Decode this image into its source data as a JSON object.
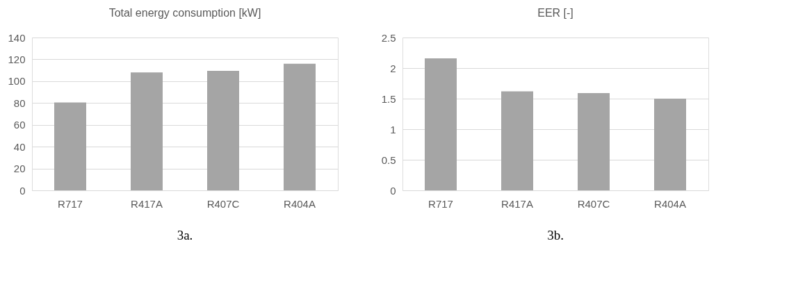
{
  "chart_data": [
    {
      "type": "bar",
      "title": "Total energy consumption [kW]",
      "categories": [
        "R717",
        "R417A",
        "R407C",
        "R404A"
      ],
      "values": [
        80.5,
        108,
        109.5,
        116
      ],
      "color": "#a5a5a5",
      "ylim": [
        0,
        140
      ],
      "yticks": [
        0,
        20,
        40,
        60,
        80,
        100,
        120,
        140
      ],
      "grid": "y",
      "annotations": [
        "3a."
      ]
    },
    {
      "type": "bar",
      "title": "EER [-]",
      "categories": [
        "R717",
        "R417A",
        "R407C",
        "R404A"
      ],
      "values": [
        2.16,
        1.62,
        1.59,
        1.5
      ],
      "color": "#a5a5a5",
      "ylim": [
        0,
        2.5
      ],
      "yticks": [
        0,
        0.5,
        1,
        1.5,
        2,
        2.5
      ],
      "grid": "y",
      "annotations": [
        "3b."
      ]
    }
  ]
}
